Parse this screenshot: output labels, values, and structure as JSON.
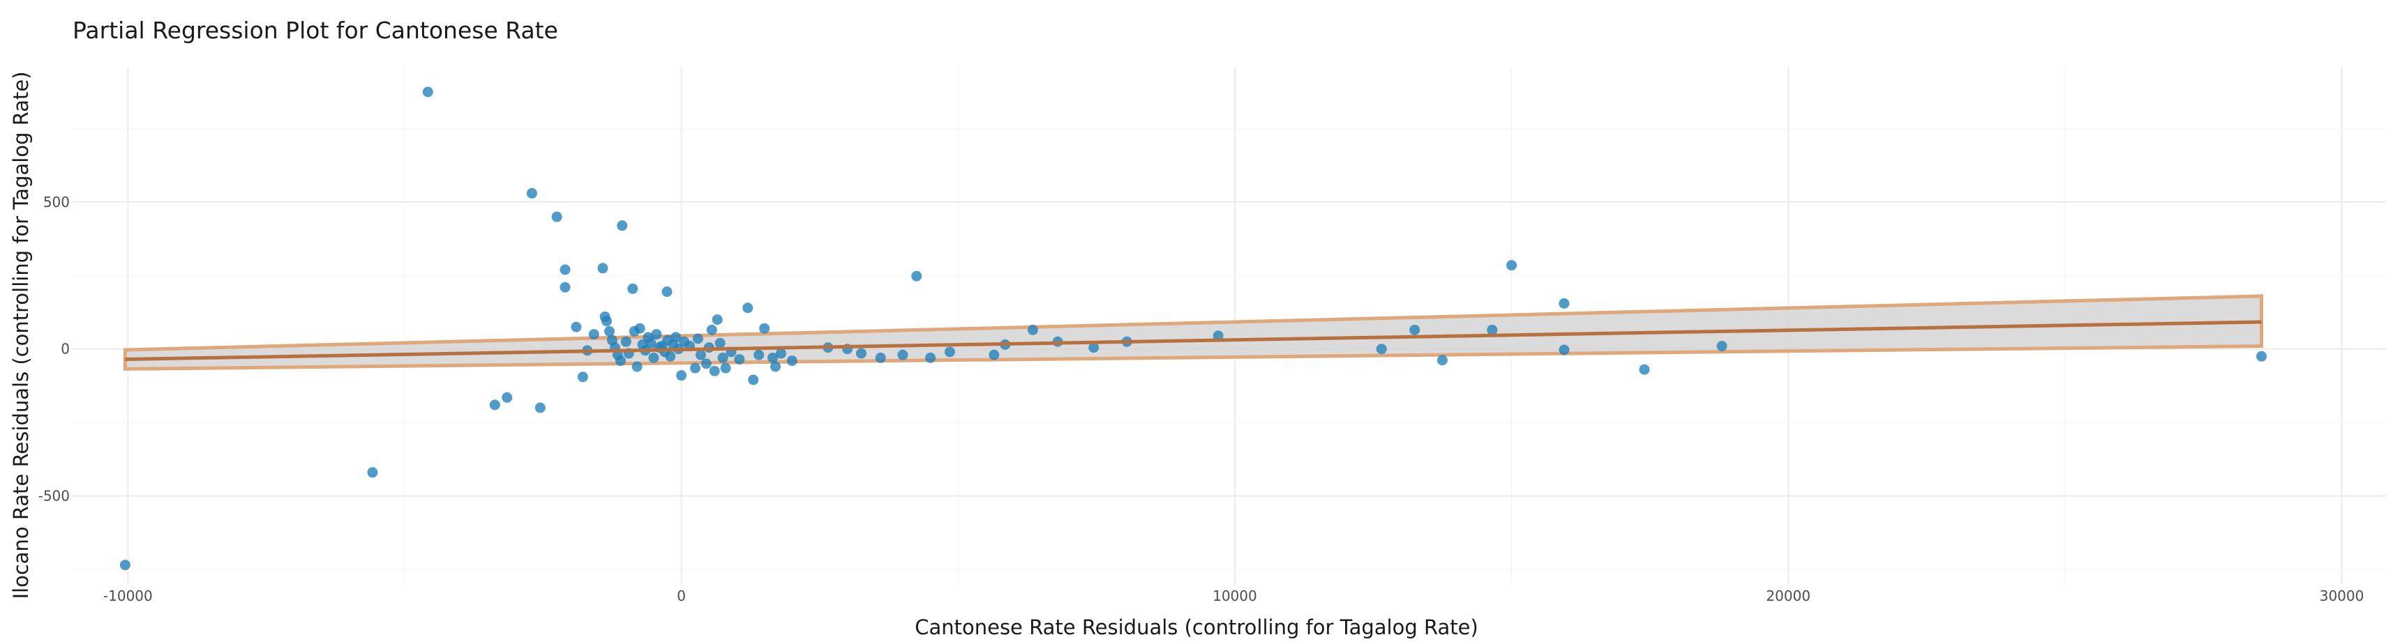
{
  "chart_data": {
    "type": "scatter",
    "title": "Partial Regression Plot for Cantonese Rate",
    "xlabel": "Cantonese Rate Residuals (controlling for Tagalog Rate)",
    "ylabel": "Ilocano Rate Residuals (controlling for Tagalog Rate)",
    "xlim": [
      -11000,
      30800
    ],
    "ylim": [
      -800,
      960
    ],
    "x_ticks": [
      -10000,
      0,
      10000,
      20000,
      30000
    ],
    "x_tick_labels": [
      "-10000",
      "0",
      "10000",
      "20000",
      "30000"
    ],
    "y_ticks": [
      -500,
      0,
      500
    ],
    "y_tick_labels": [
      "-500",
      "0",
      "500"
    ],
    "grid": true,
    "legend": "none",
    "colors": {
      "points": "#1f7fb8",
      "fit_line": "#b8703e",
      "band_fill": "#d5d5d5",
      "band_edge": "#e0a77a",
      "grid": "#ebebeb"
    },
    "fit": {
      "x": [
        -10050,
        28550
      ],
      "y": [
        -35,
        92
      ],
      "ci_lower": [
        -68,
        10
      ],
      "ci_upper": [
        -3,
        180
      ]
    },
    "points": [
      {
        "x": -10050,
        "y": -735
      },
      {
        "x": -5580,
        "y": -420
      },
      {
        "x": -4580,
        "y": 875
      },
      {
        "x": -3370,
        "y": -190
      },
      {
        "x": -3150,
        "y": -165
      },
      {
        "x": -2700,
        "y": 530
      },
      {
        "x": -2550,
        "y": -200
      },
      {
        "x": -2250,
        "y": 450
      },
      {
        "x": -2100,
        "y": 270
      },
      {
        "x": -2100,
        "y": 210
      },
      {
        "x": -1900,
        "y": 75
      },
      {
        "x": -1780,
        "y": -95
      },
      {
        "x": -1700,
        "y": -5
      },
      {
        "x": -1580,
        "y": 50
      },
      {
        "x": -1420,
        "y": 275
      },
      {
        "x": -1380,
        "y": 110
      },
      {
        "x": -1350,
        "y": 95
      },
      {
        "x": -1300,
        "y": 60
      },
      {
        "x": -1250,
        "y": 30
      },
      {
        "x": -1200,
        "y": 5
      },
      {
        "x": -1150,
        "y": -20
      },
      {
        "x": -1100,
        "y": -40
      },
      {
        "x": -1070,
        "y": 420
      },
      {
        "x": -1000,
        "y": 25
      },
      {
        "x": -950,
        "y": -15
      },
      {
        "x": -880,
        "y": 205
      },
      {
        "x": -850,
        "y": 60
      },
      {
        "x": -800,
        "y": -60
      },
      {
        "x": -750,
        "y": 70
      },
      {
        "x": -700,
        "y": 15
      },
      {
        "x": -650,
        "y": -5
      },
      {
        "x": -600,
        "y": 40
      },
      {
        "x": -550,
        "y": 20
      },
      {
        "x": -500,
        "y": -30
      },
      {
        "x": -450,
        "y": 50
      },
      {
        "x": -400,
        "y": 5
      },
      {
        "x": -350,
        "y": 10
      },
      {
        "x": -300,
        "y": -10
      },
      {
        "x": -260,
        "y": 195
      },
      {
        "x": -250,
        "y": 30
      },
      {
        "x": -200,
        "y": -25
      },
      {
        "x": -150,
        "y": 15
      },
      {
        "x": -100,
        "y": 40
      },
      {
        "x": -50,
        "y": 0
      },
      {
        "x": 0,
        "y": -90
      },
      {
        "x": 50,
        "y": 25
      },
      {
        "x": 150,
        "y": 10
      },
      {
        "x": 250,
        "y": -65
      },
      {
        "x": 300,
        "y": 35
      },
      {
        "x": 350,
        "y": -20
      },
      {
        "x": 450,
        "y": -50
      },
      {
        "x": 500,
        "y": 5
      },
      {
        "x": 550,
        "y": 65
      },
      {
        "x": 600,
        "y": -75
      },
      {
        "x": 650,
        "y": 100
      },
      {
        "x": 700,
        "y": 20
      },
      {
        "x": 750,
        "y": -30
      },
      {
        "x": 800,
        "y": -65
      },
      {
        "x": 900,
        "y": -10
      },
      {
        "x": 1050,
        "y": -35
      },
      {
        "x": 1200,
        "y": 140
      },
      {
        "x": 1300,
        "y": -105
      },
      {
        "x": 1400,
        "y": -20
      },
      {
        "x": 1500,
        "y": 70
      },
      {
        "x": 1650,
        "y": -30
      },
      {
        "x": 1700,
        "y": -60
      },
      {
        "x": 1800,
        "y": -15
      },
      {
        "x": 2000,
        "y": -40
      },
      {
        "x": 2650,
        "y": 5
      },
      {
        "x": 3000,
        "y": 0
      },
      {
        "x": 3250,
        "y": -15
      },
      {
        "x": 3600,
        "y": -30
      },
      {
        "x": 4000,
        "y": -20
      },
      {
        "x": 4250,
        "y": 248
      },
      {
        "x": 4500,
        "y": -30
      },
      {
        "x": 4850,
        "y": -10
      },
      {
        "x": 5650,
        "y": -20
      },
      {
        "x": 5850,
        "y": 15
      },
      {
        "x": 6350,
        "y": 65
      },
      {
        "x": 6800,
        "y": 25
      },
      {
        "x": 7450,
        "y": 5
      },
      {
        "x": 8050,
        "y": 25
      },
      {
        "x": 9700,
        "y": 45
      },
      {
        "x": 12650,
        "y": 0
      },
      {
        "x": 13250,
        "y": 65
      },
      {
        "x": 13750,
        "y": -38
      },
      {
        "x": 14650,
        "y": 65
      },
      {
        "x": 15000,
        "y": 285
      },
      {
        "x": 15950,
        "y": -3
      },
      {
        "x": 15950,
        "y": 155
      },
      {
        "x": 17400,
        "y": -70
      },
      {
        "x": 18800,
        "y": 10
      },
      {
        "x": 28550,
        "y": -25
      }
    ]
  }
}
